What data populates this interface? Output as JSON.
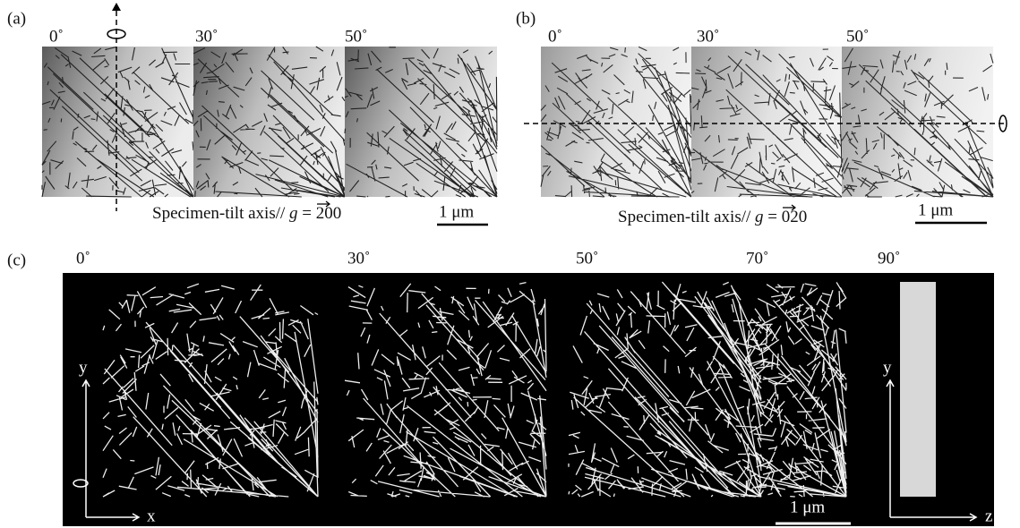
{
  "panels": [
    {
      "label": "(a)",
      "angles": [
        "0˚",
        "30˚",
        "50˚"
      ],
      "caption": {
        "prefix": "Specimen-tilt axis//",
        "symbol": "g",
        "value": "= 200"
      },
      "scale_bar": "1 μm"
    },
    {
      "label": "(b)",
      "angles": [
        "0˚",
        "30˚",
        "50˚"
      ],
      "caption": {
        "prefix": "Specimen-tilt axis//",
        "symbol": "g",
        "value": "= 020"
      },
      "scale_bar": "1 μm"
    },
    {
      "label": "(c)",
      "angles": [
        "0˚",
        "30˚",
        "50˚",
        "70˚",
        "90˚"
      ],
      "scale_bar": "1 μm",
      "axes_left": [
        "y",
        "x"
      ],
      "axes_right": [
        "y",
        "z"
      ]
    }
  ]
}
